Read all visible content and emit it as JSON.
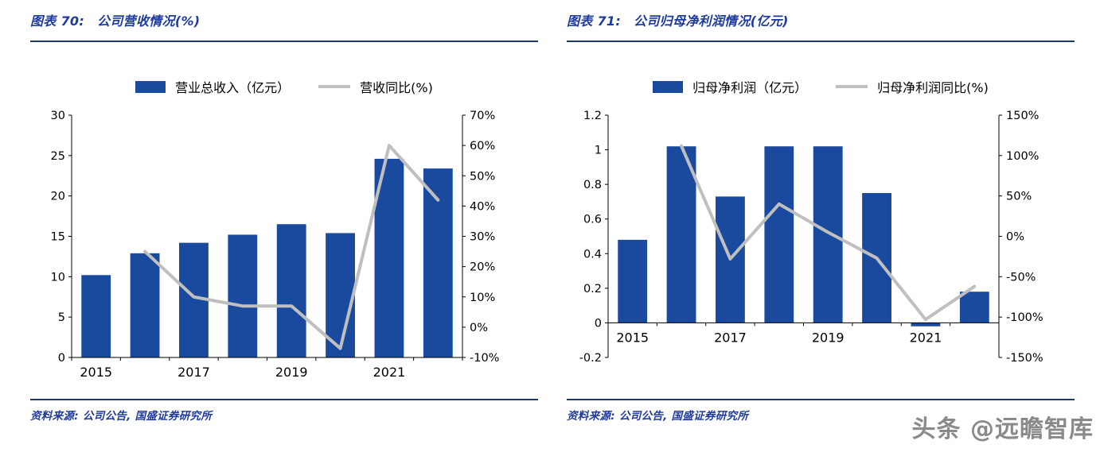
{
  "watermark": "头条 @远瞻智库",
  "colors": {
    "bar": "#1a4a9e",
    "line": "#bfbfbf",
    "title_blue": "#1e3a9f",
    "rule_navy": "#1f3864",
    "axis": "#000000",
    "watermark_gray": "#8a8a8a"
  },
  "chart_data": [
    {
      "type": "bar",
      "figure_label": "图表 70:",
      "title": "公司营收情况(%)",
      "categories": [
        "2015",
        "2016",
        "2017",
        "2018",
        "2019",
        "2020",
        "2021",
        "2022"
      ],
      "x_ticks": [
        {
          "i": 0,
          "label": "2015"
        },
        {
          "i": 2,
          "label": "2017"
        },
        {
          "i": 4,
          "label": "2019"
        },
        {
          "i": 6,
          "label": "2021"
        }
      ],
      "series": [
        {
          "name": "营业总收入（亿元）",
          "type": "bar",
          "axis": "left",
          "values": [
            10.2,
            12.9,
            14.2,
            15.2,
            16.5,
            15.4,
            24.6,
            23.4
          ]
        },
        {
          "name": "营收同比(%)",
          "type": "line",
          "axis": "right",
          "values": [
            null,
            25,
            10,
            7,
            7,
            -7,
            60,
            42
          ]
        }
      ],
      "left_axis": {
        "min": 0,
        "max": 30,
        "step": 5,
        "suffix": ""
      },
      "right_axis": {
        "min": -10,
        "max": 70,
        "step": 10,
        "suffix": "%"
      },
      "grid": false,
      "legend_position": "top",
      "source": "资料来源: 公司公告, 国盛证券研究所"
    },
    {
      "type": "bar",
      "figure_label": "图表 71:",
      "title": "公司归母净利润情况(亿元)",
      "categories": [
        "2015",
        "2016",
        "2017",
        "2018",
        "2019",
        "2020",
        "2021",
        "2022"
      ],
      "x_ticks": [
        {
          "i": 0,
          "label": "2015"
        },
        {
          "i": 2,
          "label": "2017"
        },
        {
          "i": 4,
          "label": "2019"
        },
        {
          "i": 6,
          "label": "2021"
        }
      ],
      "series": [
        {
          "name": "归母净利润（亿元）",
          "type": "bar",
          "axis": "left",
          "values": [
            0.48,
            1.02,
            0.73,
            1.02,
            1.02,
            0.75,
            -0.02,
            0.18
          ]
        },
        {
          "name": "归母净利润同比(%)",
          "type": "line",
          "axis": "right",
          "values": [
            null,
            112,
            -28,
            40,
            5,
            -27,
            -103,
            -62
          ]
        }
      ],
      "left_axis": {
        "min": -0.2,
        "max": 1.2,
        "step": 0.2,
        "suffix": ""
      },
      "right_axis": {
        "min": -150,
        "max": 150,
        "step": 50,
        "suffix": "%"
      },
      "grid": false,
      "legend_position": "top",
      "source": "资料来源: 公司公告, 国盛证券研究所"
    }
  ]
}
